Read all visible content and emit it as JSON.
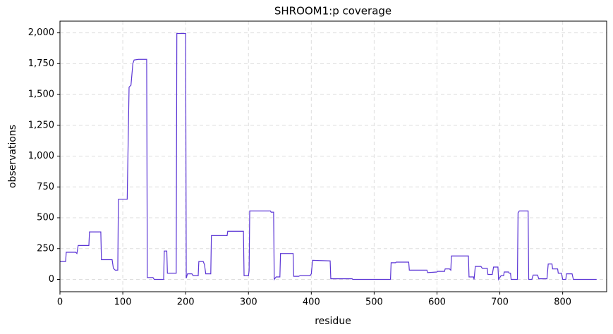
{
  "chart_data": {
    "type": "line",
    "title": "SHROOM1:p coverage",
    "x_label": "residue",
    "y_label": "observations",
    "x": [
      0,
      9,
      10,
      25,
      27,
      29,
      46,
      47,
      65,
      66,
      83,
      85,
      88,
      92,
      93,
      107,
      110,
      113,
      116,
      118,
      125,
      138,
      139,
      148,
      150,
      165,
      166,
      170,
      171,
      185,
      186,
      200,
      201,
      203,
      210,
      212,
      220,
      221,
      228,
      230,
      232,
      240,
      241,
      266,
      267,
      292,
      293,
      300,
      301,
      302,
      335,
      336,
      340,
      341,
      344,
      350,
      351,
      371,
      372,
      380,
      382,
      398,
      400,
      402,
      430,
      431,
      465,
      466,
      526,
      527,
      534,
      535,
      555,
      556,
      584,
      585,
      600,
      601,
      612,
      613,
      620,
      622,
      623,
      650,
      651,
      658,
      659,
      661,
      670,
      672,
      680,
      681,
      688,
      690,
      697,
      698,
      702,
      706,
      707,
      714,
      715,
      717,
      718,
      728,
      729,
      731,
      745,
      746,
      751,
      753,
      760,
      762,
      775,
      777,
      783,
      784,
      792,
      793,
      798,
      800,
      805,
      806,
      815,
      817,
      854
    ],
    "series": [
      {
        "name": "coverage",
        "color": "#5b35d5",
        "values": [
          145,
          145,
          220,
          220,
          210,
          275,
          275,
          385,
          385,
          160,
          160,
          90,
          75,
          75,
          650,
          650,
          1560,
          1575,
          1750,
          1780,
          1785,
          1785,
          15,
          15,
          0,
          0,
          230,
          230,
          50,
          50,
          1995,
          1995,
          10,
          45,
          45,
          30,
          30,
          145,
          145,
          120,
          45,
          45,
          355,
          355,
          390,
          390,
          30,
          30,
          70,
          555,
          555,
          545,
          545,
          0,
          20,
          20,
          210,
          210,
          25,
          25,
          30,
          30,
          45,
          155,
          150,
          5,
          5,
          0,
          0,
          135,
          135,
          140,
          140,
          75,
          75,
          55,
          60,
          65,
          65,
          85,
          85,
          75,
          190,
          190,
          20,
          20,
          0,
          105,
          105,
          90,
          90,
          40,
          40,
          100,
          100,
          0,
          30,
          30,
          60,
          60,
          50,
          50,
          0,
          0,
          540,
          555,
          555,
          0,
          0,
          35,
          35,
          5,
          5,
          125,
          125,
          85,
          85,
          50,
          50,
          0,
          0,
          45,
          45,
          0,
          0
        ]
      }
    ],
    "xlim": [
      0,
      870
    ],
    "ylim": [
      -100,
      2095
    ],
    "xticks": [
      0,
      100,
      200,
      300,
      400,
      500,
      600,
      700,
      800
    ],
    "yticks": [
      0,
      250,
      500,
      750,
      {
        "value": 1000,
        "label": "1,000"
      },
      {
        "value": 1250,
        "label": "1,250"
      },
      {
        "value": 1500,
        "label": "1,500"
      },
      {
        "value": 1750,
        "label": "1,750"
      },
      {
        "value": 2000,
        "label": "2,000"
      }
    ],
    "grid": true
  }
}
